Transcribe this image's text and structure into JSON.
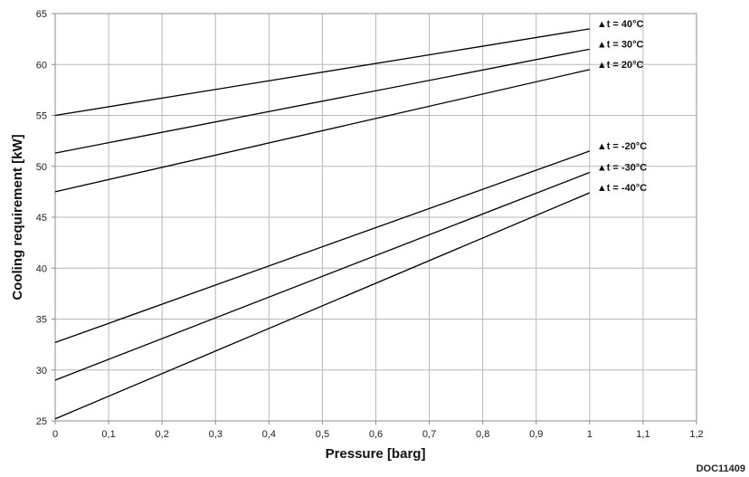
{
  "chart_data": {
    "type": "line",
    "xlabel": "Pressure [barg]",
    "ylabel": "Cooling requirement [kW]",
    "xlim": [
      0,
      1.2
    ],
    "ylim": [
      25,
      65
    ],
    "x_ticks": [
      "0",
      "0,1",
      "0,2",
      "0,3",
      "0,4",
      "0,5",
      "0,6",
      "0,7",
      "0,8",
      "0,9",
      "1",
      "1,1",
      "1,2"
    ],
    "y_ticks": [
      "25",
      "30",
      "35",
      "40",
      "45",
      "50",
      "55",
      "60",
      "65"
    ],
    "grid": true,
    "legend": "inline labels at line ends (right)",
    "series": [
      {
        "name": "▲t = 40°C",
        "x": [
          0,
          1
        ],
        "y": [
          55.0,
          63.5
        ]
      },
      {
        "name": "▲t = 30°C",
        "x": [
          0,
          1
        ],
        "y": [
          51.3,
          61.5
        ]
      },
      {
        "name": "▲t = 20°C",
        "x": [
          0,
          1
        ],
        "y": [
          47.5,
          59.5
        ]
      },
      {
        "name": "▲t = -20°C",
        "x": [
          0,
          1
        ],
        "y": [
          32.7,
          51.5
        ]
      },
      {
        "name": "▲t = -30°C",
        "x": [
          0,
          1
        ],
        "y": [
          29.0,
          49.4
        ]
      },
      {
        "name": "▲t = -40°C",
        "x": [
          0,
          1
        ],
        "y": [
          25.2,
          47.4
        ]
      }
    ]
  },
  "doc_id": "DOC11409"
}
